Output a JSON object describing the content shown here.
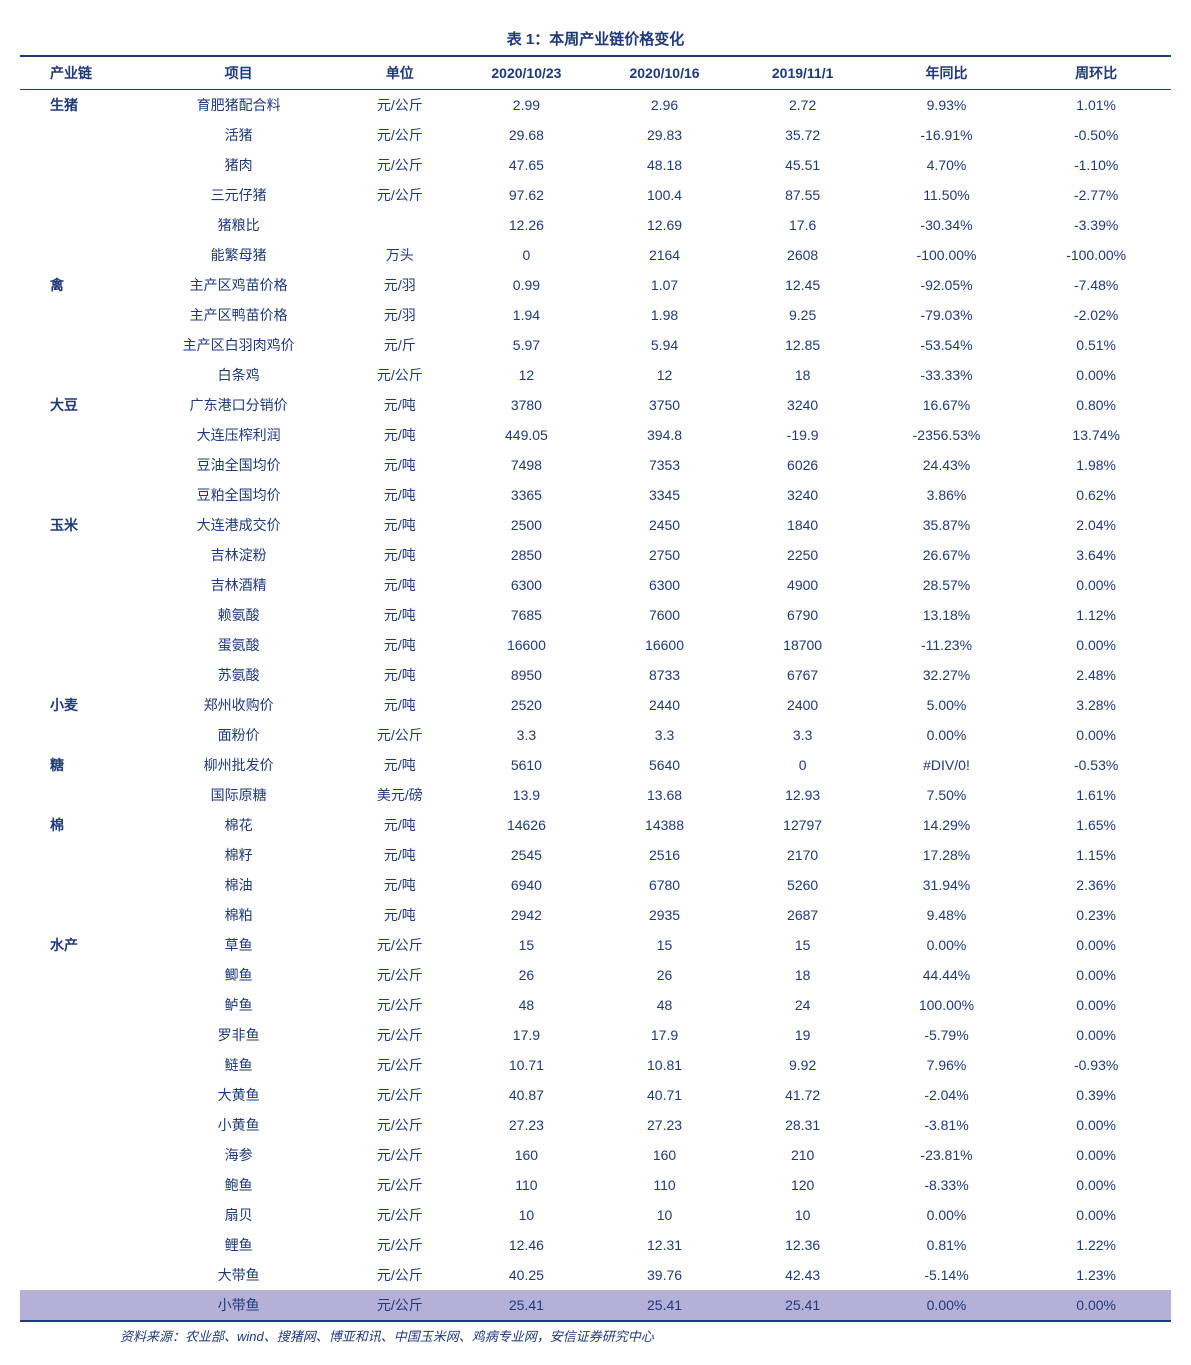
{
  "title": "表 1：本周产业链价格变化",
  "source": "资料来源：农业部、wind、搜猪网、博亚和讯、中国玉米网、鸡病专业网，安信证券研究中心",
  "colors": {
    "text": "#1f3a7a",
    "border": "#1f3a7a",
    "highlight_bg": "#b4b0d8",
    "background": "#ffffff"
  },
  "columns": [
    "产业链",
    "项目",
    "单位",
    "2020/10/23",
    "2020/10/16",
    "2019/11/1",
    "年同比",
    "周环比"
  ],
  "rows": [
    {
      "chain": "生猪",
      "item": "育肥猪配合料",
      "unit": "元/公斤",
      "d1": "2.99",
      "d2": "2.96",
      "d3": "2.72",
      "yoy": "9.93%",
      "wow": "1.01%"
    },
    {
      "chain": "",
      "item": "活猪",
      "unit": "元/公斤",
      "d1": "29.68",
      "d2": "29.83",
      "d3": "35.72",
      "yoy": "-16.91%",
      "wow": "-0.50%"
    },
    {
      "chain": "",
      "item": "猪肉",
      "unit": "元/公斤",
      "d1": "47.65",
      "d2": "48.18",
      "d3": "45.51",
      "yoy": "4.70%",
      "wow": "-1.10%"
    },
    {
      "chain": "",
      "item": "三元仔猪",
      "unit": "元/公斤",
      "d1": "97.62",
      "d2": "100.4",
      "d3": "87.55",
      "yoy": "11.50%",
      "wow": "-2.77%"
    },
    {
      "chain": "",
      "item": "猪粮比",
      "unit": "",
      "d1": "12.26",
      "d2": "12.69",
      "d3": "17.6",
      "yoy": "-30.34%",
      "wow": "-3.39%"
    },
    {
      "chain": "",
      "item": "能繁母猪",
      "unit": "万头",
      "d1": "0",
      "d2": "2164",
      "d3": "2608",
      "yoy": "-100.00%",
      "wow": "-100.00%"
    },
    {
      "chain": "禽",
      "item": "主产区鸡苗价格",
      "unit": "元/羽",
      "d1": "0.99",
      "d2": "1.07",
      "d3": "12.45",
      "yoy": "-92.05%",
      "wow": "-7.48%"
    },
    {
      "chain": "",
      "item": "主产区鸭苗价格",
      "unit": "元/羽",
      "d1": "1.94",
      "d2": "1.98",
      "d3": "9.25",
      "yoy": "-79.03%",
      "wow": "-2.02%"
    },
    {
      "chain": "",
      "item": "主产区白羽肉鸡价",
      "unit": "元/斤",
      "d1": "5.97",
      "d2": "5.94",
      "d3": "12.85",
      "yoy": "-53.54%",
      "wow": "0.51%"
    },
    {
      "chain": "",
      "item": "白条鸡",
      "unit": "元/公斤",
      "d1": "12",
      "d2": "12",
      "d3": "18",
      "yoy": "-33.33%",
      "wow": "0.00%"
    },
    {
      "chain": "大豆",
      "item": "广东港口分销价",
      "unit": "元/吨",
      "d1": "3780",
      "d2": "3750",
      "d3": "3240",
      "yoy": "16.67%",
      "wow": "0.80%"
    },
    {
      "chain": "",
      "item": "大连压榨利润",
      "unit": "元/吨",
      "d1": "449.05",
      "d2": "394.8",
      "d3": "-19.9",
      "yoy": "-2356.53%",
      "wow": "13.74%"
    },
    {
      "chain": "",
      "item": "豆油全国均价",
      "unit": "元/吨",
      "d1": "7498",
      "d2": "7353",
      "d3": "6026",
      "yoy": "24.43%",
      "wow": "1.98%"
    },
    {
      "chain": "",
      "item": "豆粕全国均价",
      "unit": "元/吨",
      "d1": "3365",
      "d2": "3345",
      "d3": "3240",
      "yoy": "3.86%",
      "wow": "0.62%"
    },
    {
      "chain": "玉米",
      "item": "大连港成交价",
      "unit": "元/吨",
      "d1": "2500",
      "d2": "2450",
      "d3": "1840",
      "yoy": "35.87%",
      "wow": "2.04%"
    },
    {
      "chain": "",
      "item": "吉林淀粉",
      "unit": "元/吨",
      "d1": "2850",
      "d2": "2750",
      "d3": "2250",
      "yoy": "26.67%",
      "wow": "3.64%"
    },
    {
      "chain": "",
      "item": "吉林酒精",
      "unit": "元/吨",
      "d1": "6300",
      "d2": "6300",
      "d3": "4900",
      "yoy": "28.57%",
      "wow": "0.00%"
    },
    {
      "chain": "",
      "item": "赖氨酸",
      "unit": "元/吨",
      "d1": "7685",
      "d2": "7600",
      "d3": "6790",
      "yoy": "13.18%",
      "wow": "1.12%"
    },
    {
      "chain": "",
      "item": "蛋氨酸",
      "unit": "元/吨",
      "d1": "16600",
      "d2": "16600",
      "d3": "18700",
      "yoy": "-11.23%",
      "wow": "0.00%"
    },
    {
      "chain": "",
      "item": "苏氨酸",
      "unit": "元/吨",
      "d1": "8950",
      "d2": "8733",
      "d3": "6767",
      "yoy": "32.27%",
      "wow": "2.48%"
    },
    {
      "chain": "小麦",
      "item": "郑州收购价",
      "unit": "元/吨",
      "d1": "2520",
      "d2": "2440",
      "d3": "2400",
      "yoy": "5.00%",
      "wow": "3.28%"
    },
    {
      "chain": "",
      "item": "面粉价",
      "unit": "元/公斤",
      "d1": "3.3",
      "d2": "3.3",
      "d3": "3.3",
      "yoy": "0.00%",
      "wow": "0.00%"
    },
    {
      "chain": "糖",
      "item": "柳州批发价",
      "unit": "元/吨",
      "d1": "5610",
      "d2": "5640",
      "d3": "0",
      "yoy": "#DIV/0!",
      "wow": "-0.53%"
    },
    {
      "chain": "",
      "item": "国际原糖",
      "unit": "美元/磅",
      "d1": "13.9",
      "d2": "13.68",
      "d3": "12.93",
      "yoy": "7.50%",
      "wow": "1.61%"
    },
    {
      "chain": "棉",
      "item": "棉花",
      "unit": "元/吨",
      "d1": "14626",
      "d2": "14388",
      "d3": "12797",
      "yoy": "14.29%",
      "wow": "1.65%"
    },
    {
      "chain": "",
      "item": "棉籽",
      "unit": "元/吨",
      "d1": "2545",
      "d2": "2516",
      "d3": "2170",
      "yoy": "17.28%",
      "wow": "1.15%"
    },
    {
      "chain": "",
      "item": "棉油",
      "unit": "元/吨",
      "d1": "6940",
      "d2": "6780",
      "d3": "5260",
      "yoy": "31.94%",
      "wow": "2.36%"
    },
    {
      "chain": "",
      "item": "棉粕",
      "unit": "元/吨",
      "d1": "2942",
      "d2": "2935",
      "d3": "2687",
      "yoy": "9.48%",
      "wow": "0.23%"
    },
    {
      "chain": "水产",
      "item": "草鱼",
      "unit": "元/公斤",
      "d1": "15",
      "d2": "15",
      "d3": "15",
      "yoy": "0.00%",
      "wow": "0.00%"
    },
    {
      "chain": "",
      "item": "鲫鱼",
      "unit": "元/公斤",
      "d1": "26",
      "d2": "26",
      "d3": "18",
      "yoy": "44.44%",
      "wow": "0.00%"
    },
    {
      "chain": "",
      "item": "鲈鱼",
      "unit": "元/公斤",
      "d1": "48",
      "d2": "48",
      "d3": "24",
      "yoy": "100.00%",
      "wow": "0.00%"
    },
    {
      "chain": "",
      "item": "罗非鱼",
      "unit": "元/公斤",
      "d1": "17.9",
      "d2": "17.9",
      "d3": "19",
      "yoy": "-5.79%",
      "wow": "0.00%"
    },
    {
      "chain": "",
      "item": "鲢鱼",
      "unit": "元/公斤",
      "d1": "10.71",
      "d2": "10.81",
      "d3": "9.92",
      "yoy": "7.96%",
      "wow": "-0.93%"
    },
    {
      "chain": "",
      "item": "大黄鱼",
      "unit": "元/公斤",
      "d1": "40.87",
      "d2": "40.71",
      "d3": "41.72",
      "yoy": "-2.04%",
      "wow": "0.39%"
    },
    {
      "chain": "",
      "item": "小黄鱼",
      "unit": "元/公斤",
      "d1": "27.23",
      "d2": "27.23",
      "d3": "28.31",
      "yoy": "-3.81%",
      "wow": "0.00%"
    },
    {
      "chain": "",
      "item": "海参",
      "unit": "元/公斤",
      "d1": "160",
      "d2": "160",
      "d3": "210",
      "yoy": "-23.81%",
      "wow": "0.00%"
    },
    {
      "chain": "",
      "item": "鲍鱼",
      "unit": "元/公斤",
      "d1": "110",
      "d2": "110",
      "d3": "120",
      "yoy": "-8.33%",
      "wow": "0.00%"
    },
    {
      "chain": "",
      "item": "扇贝",
      "unit": "元/公斤",
      "d1": "10",
      "d2": "10",
      "d3": "10",
      "yoy": "0.00%",
      "wow": "0.00%"
    },
    {
      "chain": "",
      "item": "鲤鱼",
      "unit": "元/公斤",
      "d1": "12.46",
      "d2": "12.31",
      "d3": "12.36",
      "yoy": "0.81%",
      "wow": "1.22%"
    },
    {
      "chain": "",
      "item": "大带鱼",
      "unit": "元/公斤",
      "d1": "40.25",
      "d2": "39.76",
      "d3": "42.43",
      "yoy": "-5.14%",
      "wow": "1.23%"
    },
    {
      "chain": "",
      "item": "小带鱼",
      "unit": "元/公斤",
      "d1": "25.41",
      "d2": "25.41",
      "d3": "25.41",
      "yoy": "0.00%",
      "wow": "0.00%",
      "highlight": true
    }
  ]
}
